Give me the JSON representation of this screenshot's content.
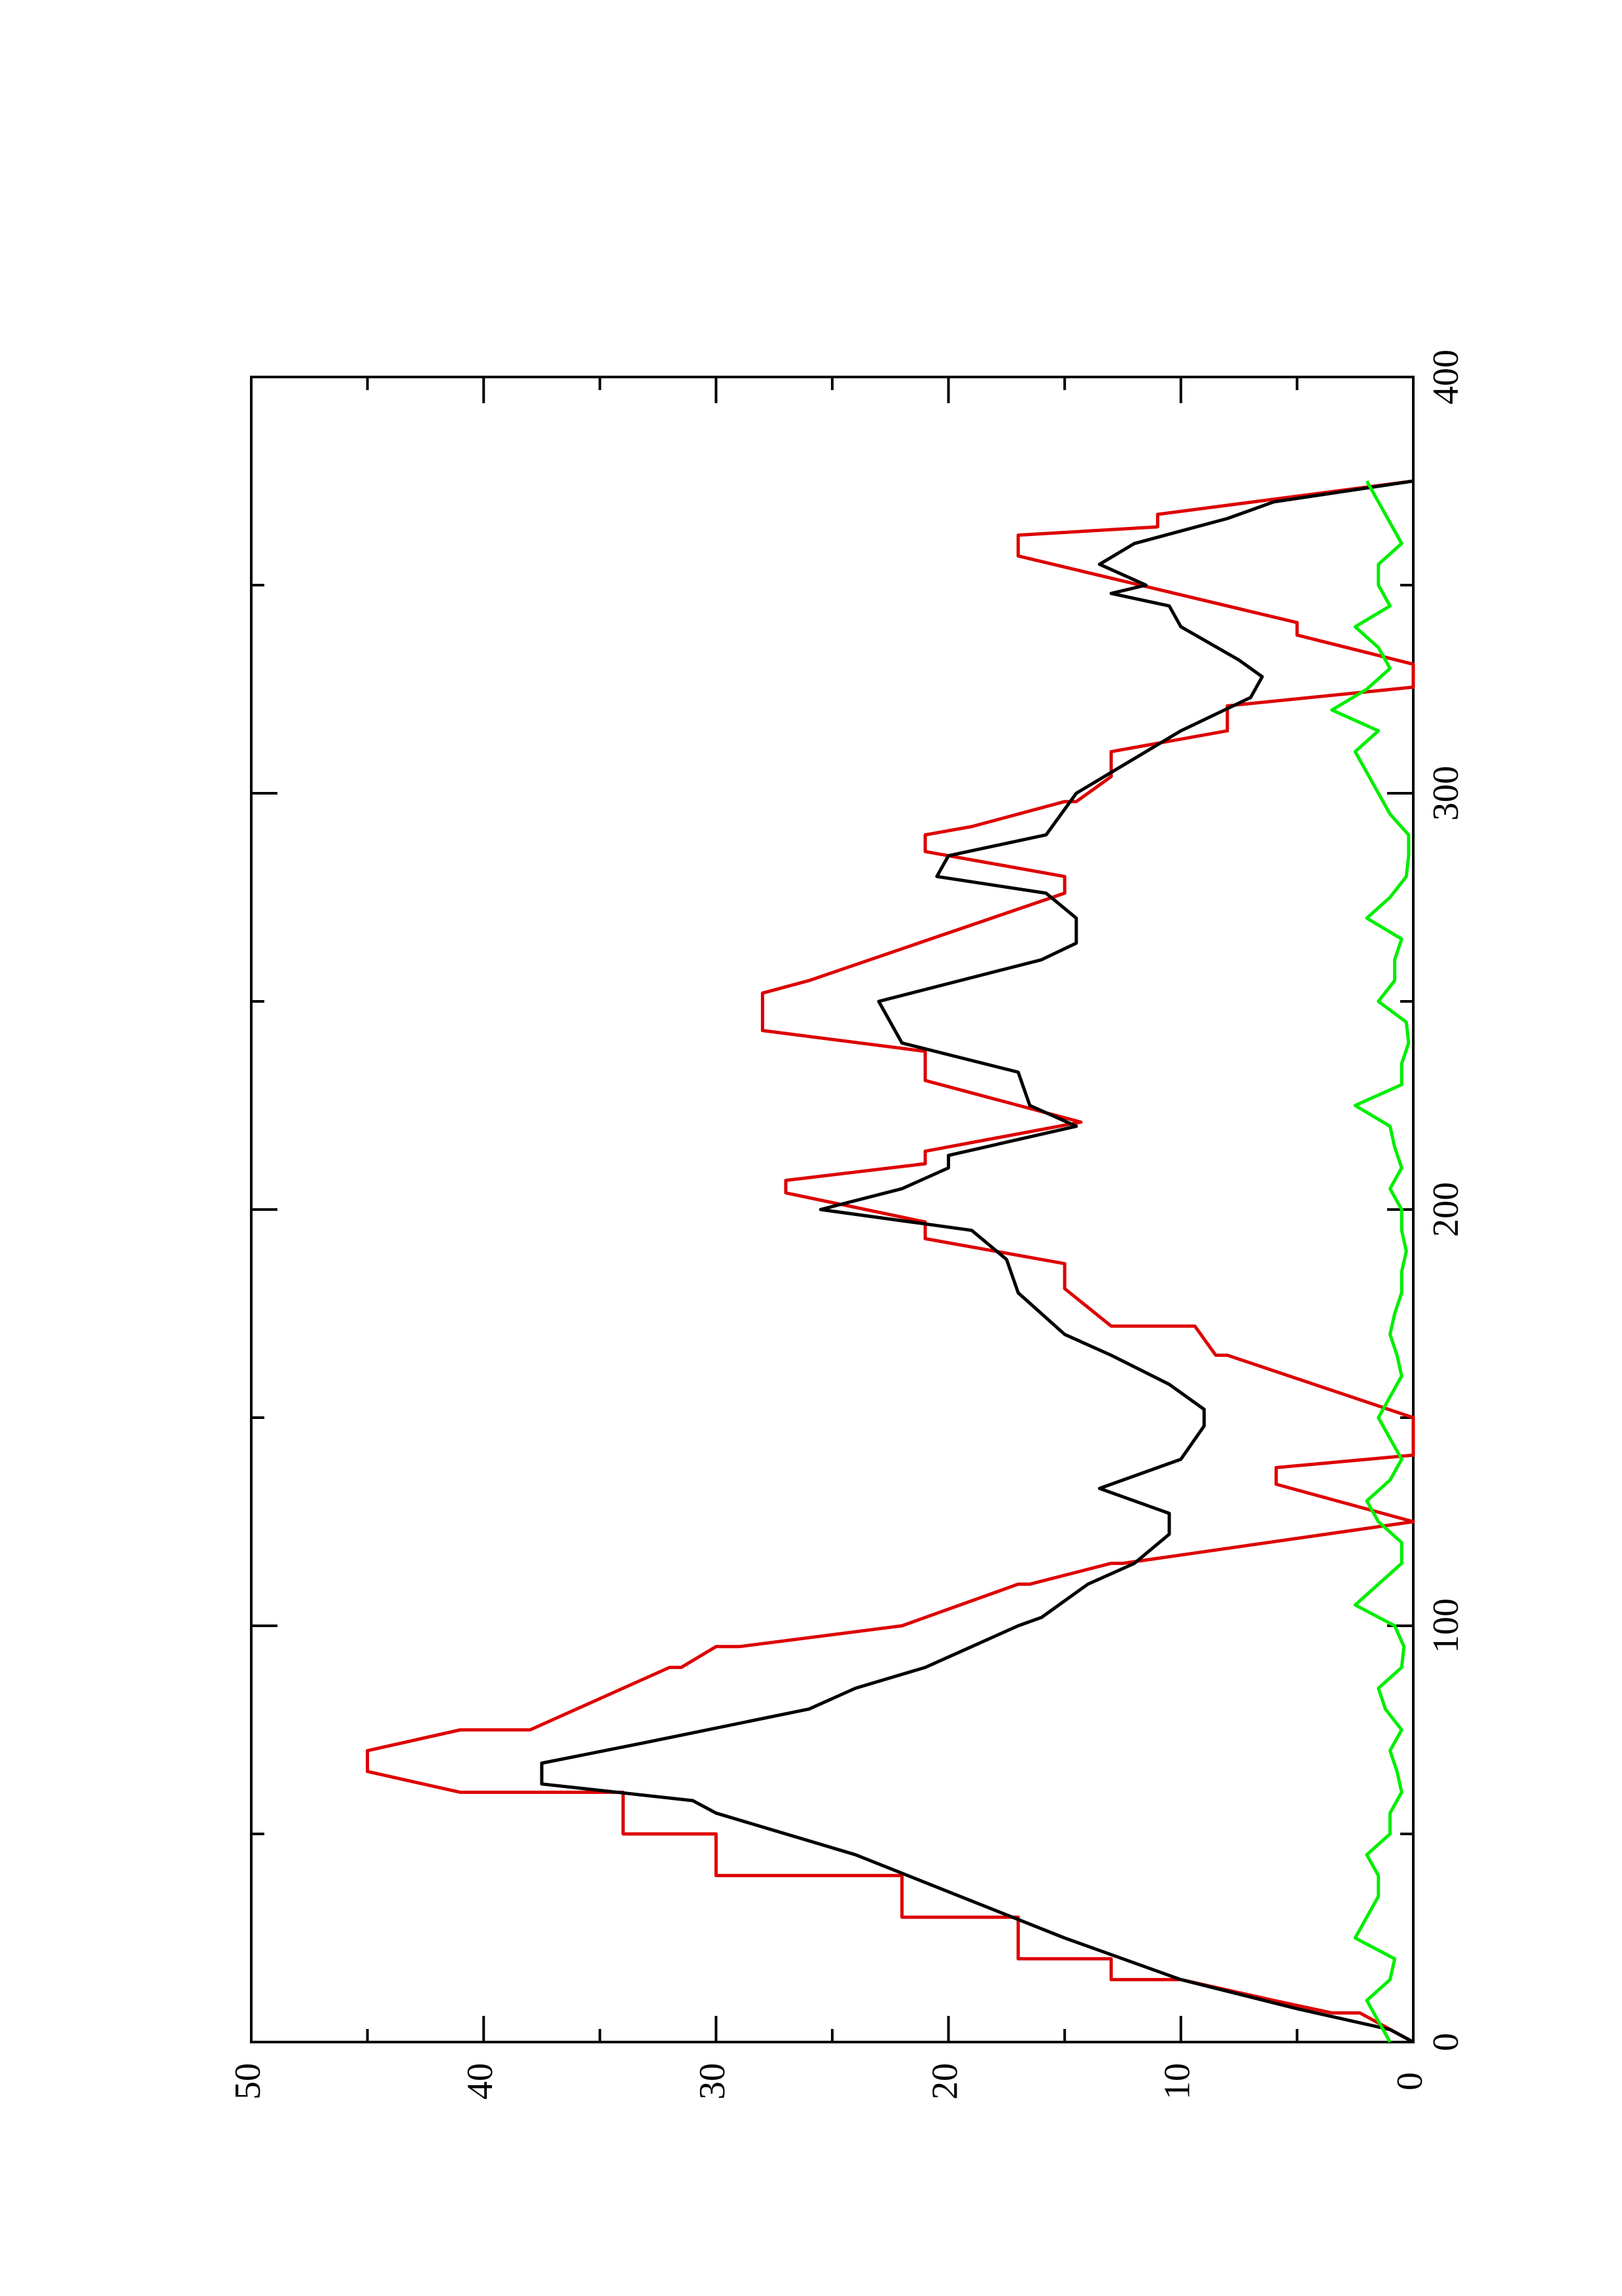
{
  "chart_data": {
    "type": "line",
    "xlim": [
      0,
      400
    ],
    "xticks": [
      0,
      100,
      200,
      300,
      400
    ],
    "xminorticks": [
      50,
      150,
      250,
      350
    ],
    "ylim": [
      0,
      50
    ],
    "yticks": [
      0,
      10,
      20,
      30,
      40,
      50
    ],
    "yminorticks": [
      5,
      15,
      25,
      35,
      45
    ],
    "series": [
      {
        "color": "#dd0000",
        "x": [
          0,
          7,
          7,
          10,
          15,
          15,
          20,
          20,
          30,
          30,
          40,
          40,
          50,
          50,
          60,
          60,
          65,
          70,
          75,
          75,
          85,
          85,
          90,
          90,
          95,
          95,
          100,
          100,
          110,
          110,
          115,
          115,
          125,
          134,
          138,
          141,
          150,
          165,
          165,
          172,
          172,
          181,
          187,
          193,
          197,
          204,
          207,
          211,
          214,
          221,
          231,
          238,
          243,
          252,
          255,
          276,
          280,
          286,
          290,
          292,
          298,
          298,
          304,
          310,
          315,
          321,
          325.5,
          331,
          338,
          341,
          357,
          362,
          364,
          367,
          375
        ],
        "values": [
          0,
          2.3,
          3.5,
          6,
          10,
          13,
          13,
          17,
          17,
          22,
          22,
          30,
          30,
          34,
          34,
          41,
          45,
          45,
          41,
          38,
          34,
          34,
          32,
          31.5,
          30,
          29,
          22,
          22,
          17,
          16.5,
          13,
          12.5,
          0,
          5.9,
          5.9,
          0,
          0,
          8,
          8.5,
          9.4,
          13,
          15,
          15,
          21,
          21,
          27,
          27,
          21,
          21,
          14.3,
          21,
          21,
          28,
          28,
          26,
          15,
          15,
          21,
          21,
          19,
          15,
          14.5,
          13,
          13,
          8,
          8,
          0,
          0,
          5,
          5,
          17,
          17,
          11,
          11,
          0
        ]
      },
      {
        "color": "#000000",
        "x": [
          0,
          3,
          8,
          15,
          25,
          35,
          45,
          55,
          58,
          62,
          67,
          72,
          80,
          85,
          90,
          95,
          100,
          102,
          110,
          115,
          122,
          127,
          133,
          140,
          148,
          152,
          158,
          165,
          170,
          180,
          188,
          195,
          200,
          205,
          210,
          213,
          220,
          225,
          233,
          240,
          250,
          260,
          264,
          270,
          276,
          280,
          285,
          290,
          300,
          305,
          315,
          323,
          328,
          332,
          340,
          345,
          348,
          350,
          355,
          360,
          366,
          370,
          375
        ],
        "values": [
          0,
          1,
          5,
          10,
          15,
          19.5,
          24,
          30,
          31,
          37.5,
          37.5,
          33,
          26,
          24,
          21,
          19,
          17,
          16,
          14,
          12,
          10.5,
          10.5,
          13.5,
          10,
          9,
          9,
          10.5,
          13,
          15,
          17,
          17.5,
          19,
          25.5,
          22,
          20,
          20,
          14.5,
          16.5,
          17,
          22,
          23,
          16,
          14.5,
          14.5,
          15.8,
          20.5,
          20,
          15.8,
          14.5,
          13,
          10,
          7,
          6.5,
          7.5,
          10,
          10.5,
          13,
          11.5,
          13.5,
          12,
          8,
          6,
          0
        ]
      },
      {
        "color": "#00ee00",
        "x": [
          0,
          5,
          10,
          15,
          20,
          25,
          30,
          35,
          40,
          45,
          50,
          55,
          60,
          65,
          70,
          75,
          80,
          85,
          90,
          95,
          100,
          105,
          110,
          115,
          120,
          125,
          130,
          135,
          140,
          145,
          150,
          155,
          160,
          165,
          170,
          175,
          180,
          185,
          190,
          195,
          200,
          205,
          210,
          215,
          220,
          225,
          230,
          235,
          240,
          245,
          250,
          255,
          260,
          265,
          270,
          275,
          280,
          285,
          290,
          295,
          300,
          305,
          310,
          315,
          320,
          325,
          330,
          335,
          340,
          345,
          350,
          355,
          360,
          365,
          370,
          375
        ],
        "values": [
          1,
          1.5,
          2,
          1,
          0.8,
          2.5,
          2,
          1.5,
          1.5,
          2,
          1,
          1,
          0.5,
          0.7,
          1,
          0.5,
          1.2,
          1.5,
          0.5,
          0.4,
          0.8,
          2.5,
          1.5,
          0.5,
          0.5,
          1.5,
          2,
          1,
          0.5,
          1,
          1.5,
          1,
          0.5,
          0.7,
          1,
          0.8,
          0.5,
          0.5,
          0.3,
          0.5,
          0.5,
          1,
          0.5,
          0.8,
          1,
          2.5,
          0.5,
          0.5,
          0.2,
          0.3,
          1.5,
          0.8,
          0.8,
          0.5,
          2,
          1,
          0.3,
          0.2,
          0.2,
          1,
          1.5,
          2,
          2.5,
          1.5,
          3.5,
          2,
          1,
          1.5,
          2.5,
          1,
          1.5,
          1.5,
          0.5,
          1,
          1.5,
          2
        ]
      }
    ]
  }
}
